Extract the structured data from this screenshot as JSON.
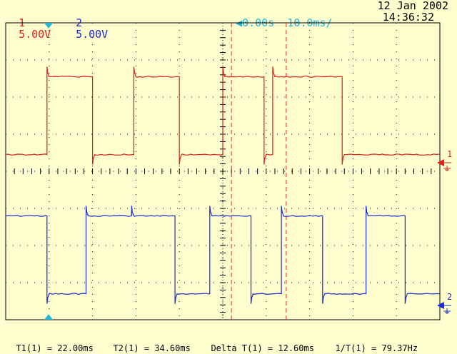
{
  "header": {
    "ch1": {
      "number": "1",
      "scale": "5.00V",
      "color": "#e0201a"
    },
    "ch2": {
      "number": "2",
      "scale": "5.00V",
      "color": "#1a2ad0"
    },
    "trigger_arrow": "◀",
    "time_offset": "0.00s",
    "timebase": "10.0ms/",
    "date": "12 Jan 2002",
    "time": "14:36:32"
  },
  "markers": {
    "ch1": "1",
    "ch2": "2"
  },
  "readout": {
    "t1": "T1(1) = 22.00ms",
    "t2": "T2(1) = 34.60ms",
    "delta": "Delta T(1) = 12.60ms",
    "inv": "1/T(1) = 79.37Hz"
  },
  "chart_data": {
    "type": "line",
    "x_unit": "ms",
    "x_range": [
      -30,
      70
    ],
    "y_unit": "div",
    "y_range": [
      -4,
      4
    ],
    "cursors_ms": [
      22.0,
      34.6
    ],
    "series": [
      {
        "channel": "1",
        "color": "#e0201a",
        "low": 0.45,
        "high": 2.55,
        "transitions_ms": [
          [
            -20.5,
            "up"
          ],
          [
            -10.0,
            "down"
          ],
          [
            -0.5,
            "up"
          ],
          [
            10.0,
            "down"
          ],
          [
            20.0,
            "up"
          ],
          [
            29.5,
            "down"
          ],
          [
            31.5,
            "up"
          ],
          [
            47.5,
            "down"
          ],
          [
            70.5,
            "up"
          ]
        ],
        "start": "low"
      },
      {
        "channel": "2",
        "color": "#1a2ad0",
        "low": -3.3,
        "high": -1.2,
        "transitions_ms": [
          [
            -20.5,
            "down"
          ],
          [
            -11.5,
            "up"
          ],
          [
            -1.0,
            "up"
          ],
          [
            9.0,
            "down"
          ],
          [
            17.0,
            "up"
          ],
          [
            26.5,
            "down"
          ],
          [
            33.5,
            "up"
          ],
          [
            43.0,
            "down"
          ],
          [
            53.0,
            "up"
          ],
          [
            62.0,
            "down"
          ]
        ],
        "start": "high"
      }
    ]
  }
}
